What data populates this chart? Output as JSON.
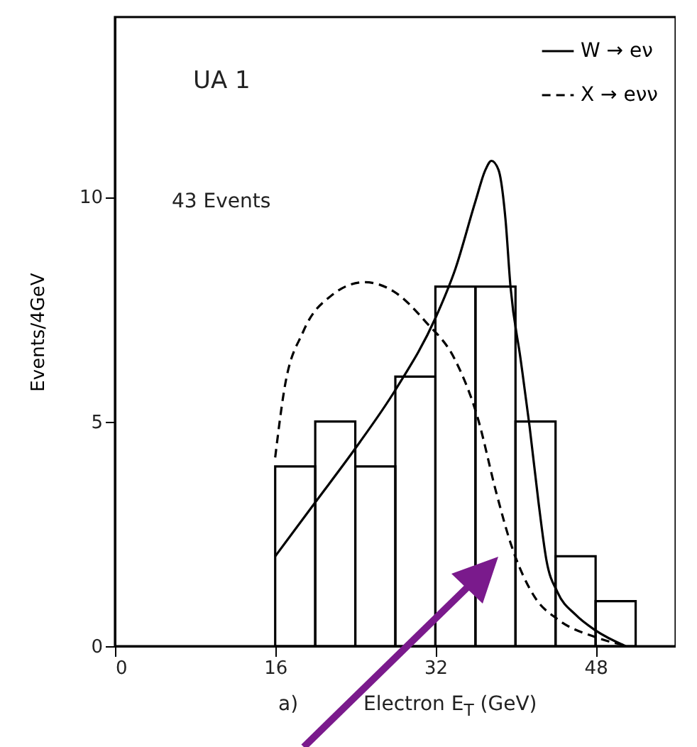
{
  "chart_data": {
    "type": "histogram",
    "xlabel": "Electron E$_{T}$ (GeV)",
    "ylabel": "Events/4GeV",
    "annotations": [
      "UA 1",
      "43 Events",
      "a)"
    ],
    "bins": [
      16,
      20,
      24,
      28,
      32,
      36,
      40,
      44,
      48,
      52
    ],
    "values": [
      4,
      5,
      4,
      6,
      8,
      8,
      5,
      2,
      1
    ],
    "color": "#000000",
    "series": [
      {
        "name": "W → eν",
        "type": "line",
        "color": "#000000",
        "line_style": "solid",
        "x": [
          16,
          20,
          24,
          28,
          32,
          34,
          36,
          37,
          37.6,
          38.3,
          39,
          39.5,
          40.5,
          41.4,
          42.3,
          43.1,
          44.2,
          46,
          48,
          51
        ],
        "values": [
          2,
          3.2,
          4.4,
          5.7,
          7.3,
          8.4,
          9.9,
          10.6,
          10.8,
          10.6,
          9.5,
          8,
          6.4,
          4.9,
          3.2,
          1.9,
          1.2,
          0.7,
          0.35,
          0
        ]
      },
      {
        "name": "X → eνν",
        "type": "line",
        "color": "#000000",
        "line_style": "dashed",
        "x": [
          16,
          16.9,
          18.8,
          21.6,
          24.9,
          27.8,
          31.1,
          33.9,
          36.2,
          38.1,
          39.5,
          41.9,
          44.2,
          48,
          51.3
        ],
        "values": [
          4.2,
          5.7,
          7,
          7.8,
          8.1,
          7.9,
          7.2,
          6.4,
          5.1,
          3.4,
          2.3,
          1.1,
          0.6,
          0.2,
          0
        ]
      }
    ],
    "xlim": [
      0,
      56
    ],
    "ylim": [
      0,
      14
    ],
    "xticks": [
      0,
      16,
      32,
      48
    ],
    "yticks": [
      0,
      5,
      10
    ],
    "legend": "top right",
    "grid": false
  }
}
